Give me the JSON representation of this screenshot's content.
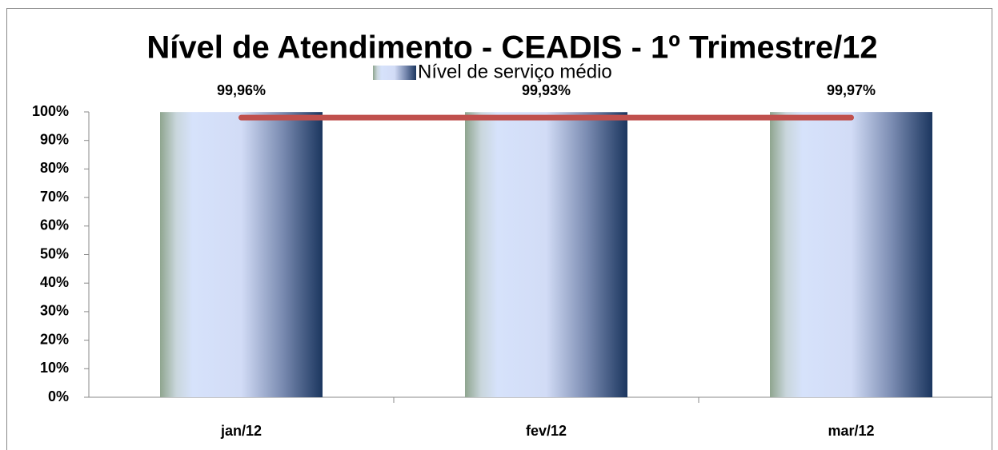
{
  "chart_data": {
    "type": "bar",
    "title": "Nível de Atendimento - CEADIS - 1º Trimestre/12",
    "categories": [
      "jan/12",
      "fev/12",
      "mar/12"
    ],
    "series": [
      {
        "name": "Nível de serviço médio",
        "type": "bar",
        "values": [
          99.96,
          99.93,
          99.97
        ],
        "value_labels": [
          "99,96%",
          "99,93%",
          "99,97%"
        ]
      },
      {
        "type": "line",
        "color": "#c0504d",
        "values": [
          98,
          98,
          98
        ]
      }
    ],
    "ylim": [
      0,
      100
    ],
    "yticks": [
      {
        "value": 0,
        "label": "0%"
      },
      {
        "value": 10,
        "label": "10%"
      },
      {
        "value": 20,
        "label": "20%"
      },
      {
        "value": 30,
        "label": "30%"
      },
      {
        "value": 40,
        "label": "40%"
      },
      {
        "value": 50,
        "label": "50%"
      },
      {
        "value": 60,
        "label": "60%"
      },
      {
        "value": 70,
        "label": "70%"
      },
      {
        "value": 80,
        "label": "80%"
      },
      {
        "value": 90,
        "label": "90%"
      },
      {
        "value": 100,
        "label": "100%"
      }
    ],
    "legend": "top"
  }
}
